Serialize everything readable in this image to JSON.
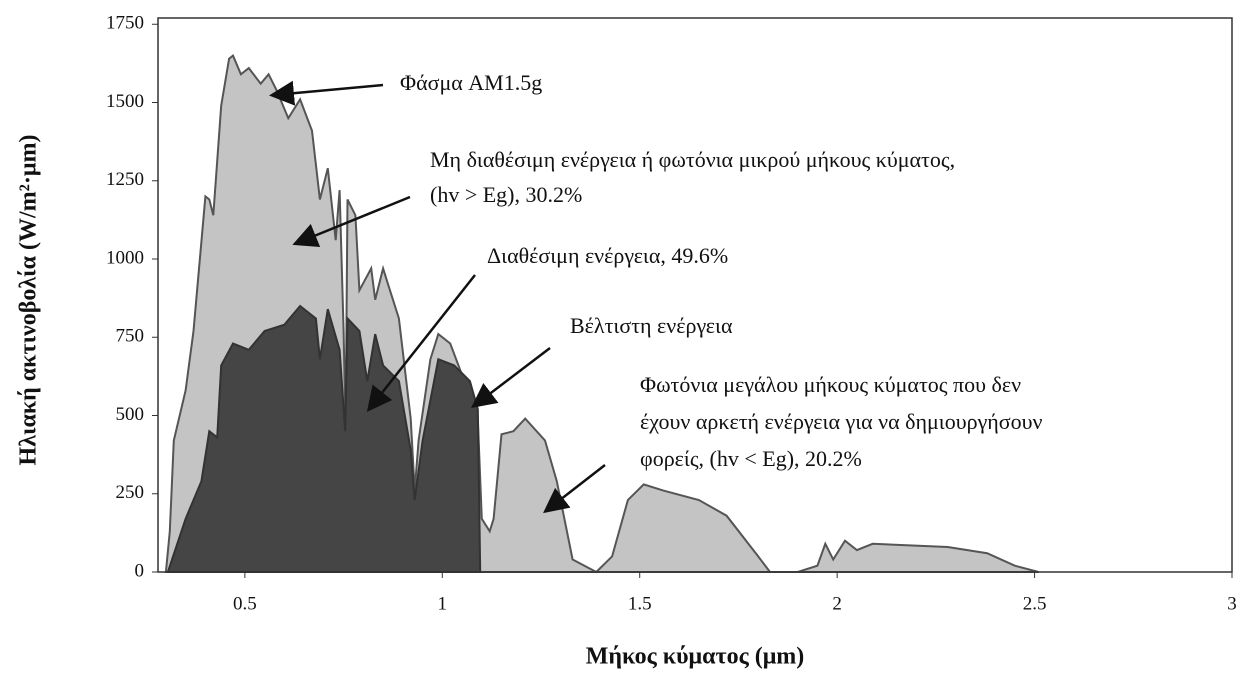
{
  "chart_data": {
    "type": "area",
    "xlabel": "Μήκος κύματος (μm)",
    "ylabel": "Ηλιακή ακτινοβολία (W/m²·μm)",
    "xlim": [
      0.28,
      3
    ],
    "ylim": [
      0,
      1770
    ],
    "xticks": [
      0.5,
      1,
      1.5,
      2,
      2.5,
      3
    ],
    "yticks": [
      0,
      250,
      500,
      750,
      1000,
      1250,
      1500,
      1750
    ],
    "series": [
      {
        "name": "Φάσμα AM1.5g",
        "color": "#c4c4c4",
        "stroke": "#555555",
        "x": [
          0.3,
          0.31,
          0.32,
          0.35,
          0.37,
          0.4,
          0.41,
          0.42,
          0.44,
          0.46,
          0.47,
          0.49,
          0.51,
          0.54,
          0.56,
          0.58,
          0.61,
          0.64,
          0.67,
          0.69,
          0.71,
          0.73,
          0.74,
          0.75,
          0.755,
          0.76,
          0.78,
          0.79,
          0.82,
          0.83,
          0.85,
          0.86,
          0.89,
          0.92,
          0.93,
          0.94,
          0.97,
          0.99,
          1.02,
          1.05,
          1.09,
          1.1,
          1.12,
          1.13,
          1.15,
          1.18,
          1.21,
          1.26,
          1.29,
          1.33,
          1.39,
          1.43,
          1.47,
          1.51,
          1.56,
          1.65,
          1.72,
          1.8,
          1.83,
          1.9,
          1.95,
          1.97,
          1.99,
          2.02,
          2.05,
          2.09,
          2.28,
          2.38,
          2.45,
          2.51
        ],
        "values": [
          0,
          130,
          420,
          580,
          770,
          1200,
          1190,
          1140,
          1490,
          1640,
          1650,
          1590,
          1610,
          1560,
          1590,
          1540,
          1450,
          1510,
          1410,
          1190,
          1290,
          1060,
          1220,
          770,
          450,
          1190,
          1140,
          900,
          970,
          870,
          970,
          930,
          810,
          490,
          260,
          420,
          680,
          760,
          730,
          630,
          490,
          170,
          130,
          170,
          440,
          450,
          490,
          420,
          290,
          40,
          0,
          50,
          230,
          280,
          260,
          230,
          180,
          50,
          0,
          0,
          20,
          90,
          40,
          100,
          70,
          90,
          80,
          60,
          20,
          0
        ]
      },
      {
        "name": "Διαθέσιμη ενέργεια",
        "color": "#454545",
        "stroke": "#333333",
        "x": [
          0.305,
          0.35,
          0.39,
          0.41,
          0.43,
          0.44,
          0.47,
          0.51,
          0.55,
          0.6,
          0.64,
          0.68,
          0.69,
          0.71,
          0.74,
          0.754,
          0.76,
          0.79,
          0.81,
          0.83,
          0.85,
          0.89,
          0.92,
          0.93,
          0.95,
          0.99,
          1.03,
          1.07,
          1.09,
          1.096
        ],
        "values": [
          0,
          170,
          290,
          450,
          430,
          660,
          730,
          710,
          770,
          790,
          850,
          810,
          680,
          840,
          710,
          450,
          810,
          770,
          610,
          760,
          660,
          610,
          390,
          230,
          420,
          680,
          660,
          610,
          520,
          0
        ]
      }
    ],
    "annotations": [
      [
        "Φάσμα AM1.5g"
      ],
      [
        "Μη διαθέσιμη ενέργεια ή φωτόνια μικρού μήκους κύματος,",
        "(hv > Eg), 30.2%"
      ],
      [
        "Διαθέσιμη ενέργεια, 49.6%"
      ],
      [
        "Βέλτιστη ενέργεια"
      ],
      [
        "Φωτόνια μεγάλου μήκους κύματος που δεν",
        "έχουν αρκετή ενέργεια για να δημιουργήσουν",
        "φορείς, (hv < Eg), 20.2%"
      ]
    ]
  }
}
